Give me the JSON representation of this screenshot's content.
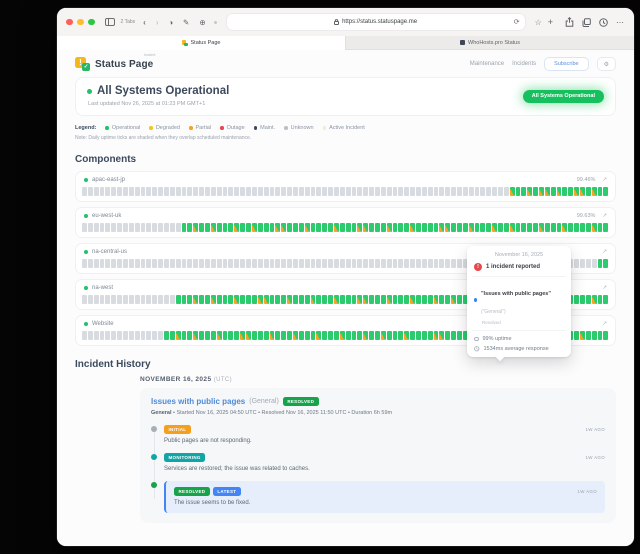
{
  "browser": {
    "tabs_label": "2 Tabs",
    "url": "https://status.statuspage.me",
    "active_tab": "Status Page",
    "inactive_tab": "WhoHosts.pro Status"
  },
  "header": {
    "brand": "Status Page",
    "brand_tag": "hosted",
    "nav_maintenance": "Maintenance",
    "nav_incidents": "Incidents",
    "subscribe": "Subscribe"
  },
  "hero": {
    "title": "All Systems Operational",
    "updated": "Last updated Nov 26, 2025 at 01:23 PM GMT+1",
    "badge": "All Systems Operational"
  },
  "legend": {
    "label": "Legend:",
    "note": "Note: Daily uptime ticks are shaded when they overlap scheduled maintenance.",
    "items": [
      {
        "label": "Operational",
        "color": "#22c268"
      },
      {
        "label": "Degraded",
        "color": "#f5c518"
      },
      {
        "label": "Partial",
        "color": "#f7a325"
      },
      {
        "label": "Outage",
        "color": "#e5484d"
      },
      {
        "label": "Maint.",
        "color": "#3d4a5f"
      },
      {
        "label": "Unknown",
        "color": "#b9c0c8"
      },
      {
        "label": "Active Incident",
        "color": "#f6ecd4"
      }
    ]
  },
  "components": {
    "title": "Components",
    "tick_colors": {
      "unknown": "#d8dbdf",
      "operational": "#2bcb6e",
      "maintenance_shade": "#f7a325"
    },
    "rows": [
      {
        "name": "apac-east-jp",
        "uptime": "99.46%",
        "ticks": "gggggggggggggggggggggggggggggggggggggggggggggggggggggggggggggggggggggggggMGGMGMMGMGGMMGMGG"
      },
      {
        "name": "eu-west-uk",
        "uptime": "99.63%",
        "ticks": "gggggggggggggggggGGMGGMGGGMGGMGGGMMGGGMGGGGMGGGMMGGGMGGGMGGGGMMGGGMGGGMGGMGGGGMGGGMGGGGMGG"
      },
      {
        "name": "na-central-us",
        "uptime": "",
        "ticks": "ggggggggggggggggggggggggggggggggggggggggggggggggggggggggggggggggggggggggggggggggggggggggGG"
      },
      {
        "name": "na-west",
        "uptime": "",
        "ticks": "ggggggggggggggggGGGMGGMGGGMGGGMMGGGMGGGMGGGMGGGMMGGGMGGGMGGGMGGMGGGGMMGGGMGGGMGGGMMGGGGMGG"
      },
      {
        "name": "Website",
        "uptime": "",
        "ticks": "ggggggggggggggGGMGGMGGGMGGGMMGGGMGGGMGGGMGGGMGGGMGGMGGGMGGGGMMGGGGMGGGGGMMGMMHMMGGMGGMGGGG"
      }
    ]
  },
  "tooltip": {
    "date": "November 16, 2025",
    "incident_count": "1 incident reported",
    "incident_title": "\"Issues with public pages\"",
    "incident_scope": "(\"General\")",
    "incident_status": "Resolved",
    "uptime": "99% uptime",
    "response": "1534ms average response"
  },
  "history": {
    "title": "Incident History",
    "date_header": "NOVEMBER 16, 2025",
    "date_tz": "(UTC)",
    "incident": {
      "title": "Issues with public pages",
      "scope": "(General)",
      "status_badge": "RESOLVED",
      "meta_component": "General",
      "meta_rest": " • Started Nov 16, 2025 04:50 UTC • Resolved Nov 16, 2025 11:50 UTC • Duration 6h 59m",
      "updates": [
        {
          "badge": "INITIAL",
          "time": "1W AGO",
          "text": "Public pages are not responding."
        },
        {
          "badge": "MONITORING",
          "time": "1W AGO",
          "text": "Services are restored; the issue was related to caches."
        },
        {
          "badge": "RESOLVED",
          "badge2": "LATEST",
          "time": "1W AGO",
          "text": "The issue seems to be fixed."
        }
      ]
    }
  }
}
